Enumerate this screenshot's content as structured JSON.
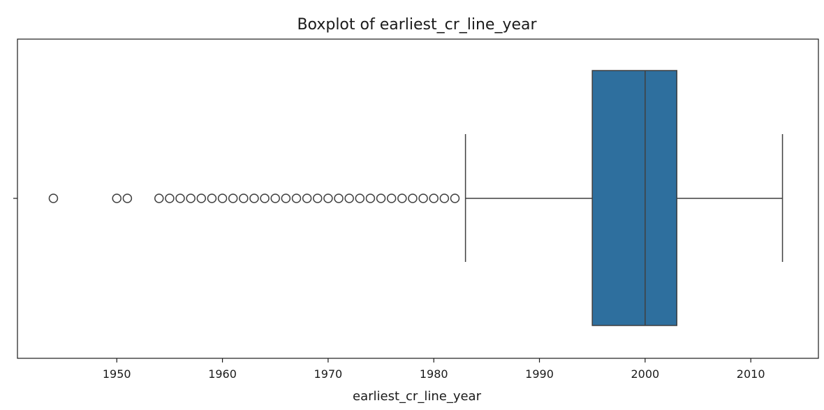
{
  "chart_data": {
    "type": "boxplot",
    "orientation": "horizontal",
    "title": "Boxplot of earliest_cr_line_year",
    "xlabel": "earliest_cr_line_year",
    "ylabel": "",
    "xlim": [
      1940.6,
      2016.4
    ],
    "xticks": [
      1950,
      1960,
      1970,
      1980,
      1990,
      2000,
      2010
    ],
    "xtick_labels": [
      "1950",
      "1960",
      "1970",
      "1980",
      "1990",
      "2000",
      "2010"
    ],
    "box": {
      "whisker_low": 1983,
      "q1": 1995,
      "median": 2000,
      "q3": 2003,
      "whisker_high": 2013
    },
    "outliers": [
      1944,
      1950,
      1951,
      1954,
      1955,
      1956,
      1957,
      1958,
      1959,
      1960,
      1961,
      1962,
      1963,
      1964,
      1965,
      1966,
      1967,
      1968,
      1969,
      1970,
      1971,
      1972,
      1973,
      1974,
      1975,
      1976,
      1977,
      1978,
      1979,
      1980,
      1981,
      1982
    ],
    "colors": {
      "box_fill": "#2e6f9e",
      "line": "#3f3f3f",
      "outlier_edge": "#3f3f3f"
    },
    "grid": false,
    "legend": "none"
  }
}
